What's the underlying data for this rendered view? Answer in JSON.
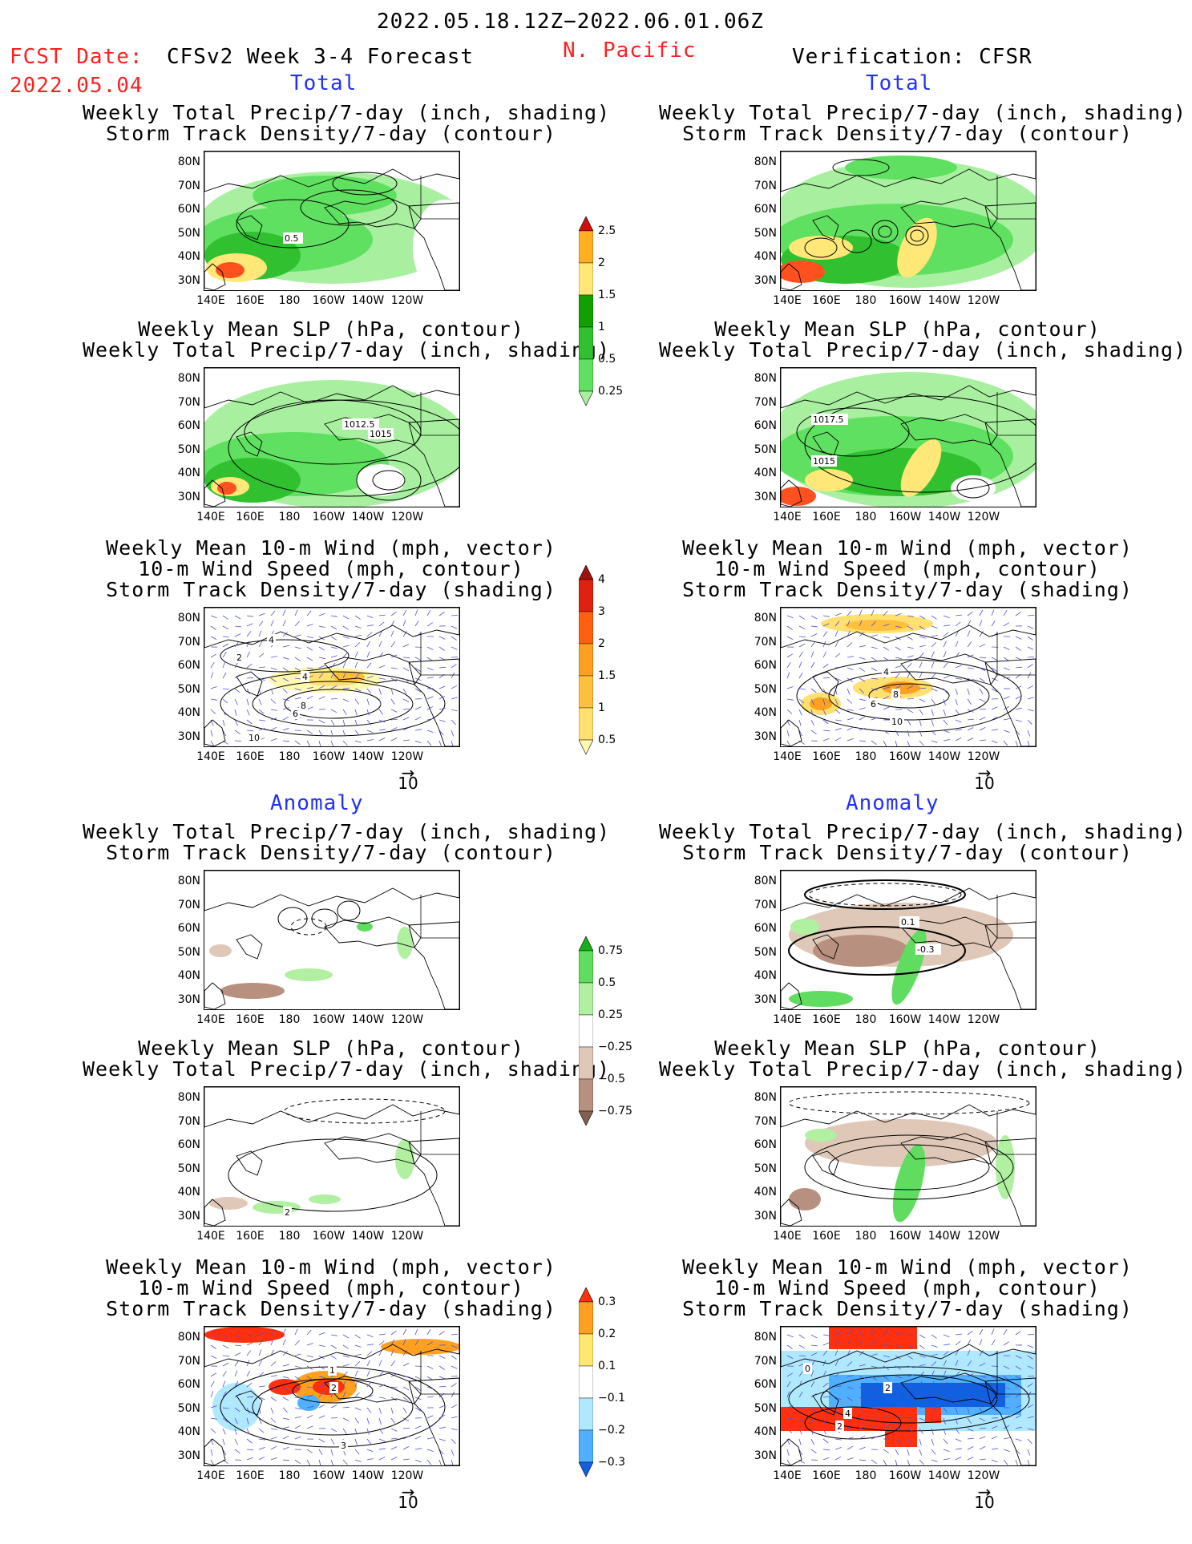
{
  "header": {
    "date_range": "2022.05.18.12Z−2022.06.01.06Z",
    "fcst_label": "FCST Date:",
    "fcst_date": "2022.05.04",
    "model": "CFSv2 Week 3-4 Forecast",
    "region": "N. Pacific",
    "verification": "Verification: CFSR"
  },
  "sections": {
    "total": "Total",
    "anomaly": "Anomaly"
  },
  "titles": {
    "precip_storm": [
      "Weekly Total Precip/7-day (inch, shading)",
      "Storm Track Density/7-day (contour)"
    ],
    "slp_precip": [
      "Weekly Mean SLP (hPa, contour)",
      "Weekly Total Precip/7-day (inch, shading)"
    ],
    "wind_storm": [
      "Weekly Mean 10-m Wind (mph, vector)",
      "10-m Wind Speed (mph, contour)",
      "Storm Track Density/7-day (shading)"
    ]
  },
  "axes": {
    "lat_ticks": [
      "80N",
      "70N",
      "60N",
      "50N",
      "40N",
      "30N"
    ],
    "lon_ticks": [
      "140E",
      "160E",
      "180",
      "160W",
      "140W",
      "120W"
    ]
  },
  "vector_ref": "10",
  "contour_labels": {
    "p1_left": [
      "0.5"
    ],
    "p2_left": [
      "1012.5",
      "1015"
    ],
    "p2_right": [
      "1017.5",
      "1015"
    ],
    "p3_left": [
      "4",
      "2",
      "4",
      "6",
      "8",
      "10"
    ],
    "p3_right": [
      "4",
      "6",
      "8",
      "10"
    ],
    "p4_right": [
      "0.1",
      "-0.3"
    ],
    "p5_left": [
      "2"
    ],
    "p6_left": [
      "1",
      "2",
      "3"
    ],
    "p6_right": [
      "0",
      "2",
      "4",
      "2"
    ]
  },
  "colors": {
    "title_red": "#ff2020",
    "section_blue": "#2030ff",
    "precip": [
      "#a8f0a0",
      "#60e060",
      "#30c030",
      "#11a000",
      "#ffe878",
      "#ffb020",
      "#ff5020",
      "#d01010"
    ],
    "storm": [
      "#fff8b0",
      "#ffe070",
      "#ffc040",
      "#ffa020",
      "#ff6010",
      "#e02010",
      "#a01010"
    ],
    "anom_precip_pos": [
      "#b0f0a0",
      "#60dc60",
      "#18b018"
    ],
    "anom_precip_neg": [
      "#e0c8b8",
      "#b89080",
      "#806050"
    ],
    "anom_storm_pos": [
      "#ffe870",
      "#ffa020",
      "#ff3010"
    ],
    "anom_storm_neg": [
      "#b0e8ff",
      "#50b0ff",
      "#1060e0"
    ]
  },
  "chart_data": [
    {
      "type": "heatmap",
      "legend": "precip_total",
      "levels": [
        0.25,
        0.5,
        1,
        1.5,
        2,
        2.5
      ],
      "tick_labels": [
        "0.25",
        "0.5",
        "1",
        "1.5",
        "2",
        "2.5"
      ]
    },
    {
      "type": "heatmap",
      "legend": "storm_total",
      "levels": [
        0.5,
        1,
        1.5,
        2,
        3,
        4
      ],
      "tick_labels": [
        "0.5",
        "1",
        "1.5",
        "2",
        "3",
        "4"
      ]
    },
    {
      "type": "heatmap",
      "legend": "precip_anomaly",
      "levels": [
        -0.75,
        -0.5,
        -0.25,
        0.25,
        0.5,
        0.75
      ],
      "tick_labels": [
        "−0.75",
        "−0.5",
        "−0.25",
        "0.25",
        "0.5",
        "0.75"
      ]
    },
    {
      "type": "heatmap",
      "legend": "storm_anomaly",
      "levels": [
        -0.3,
        -0.2,
        -0.1,
        0.1,
        0.2,
        0.3
      ],
      "tick_labels": [
        "−0.3",
        "−0.2",
        "−0.1",
        "0.1",
        "0.2",
        "0.3"
      ]
    }
  ]
}
